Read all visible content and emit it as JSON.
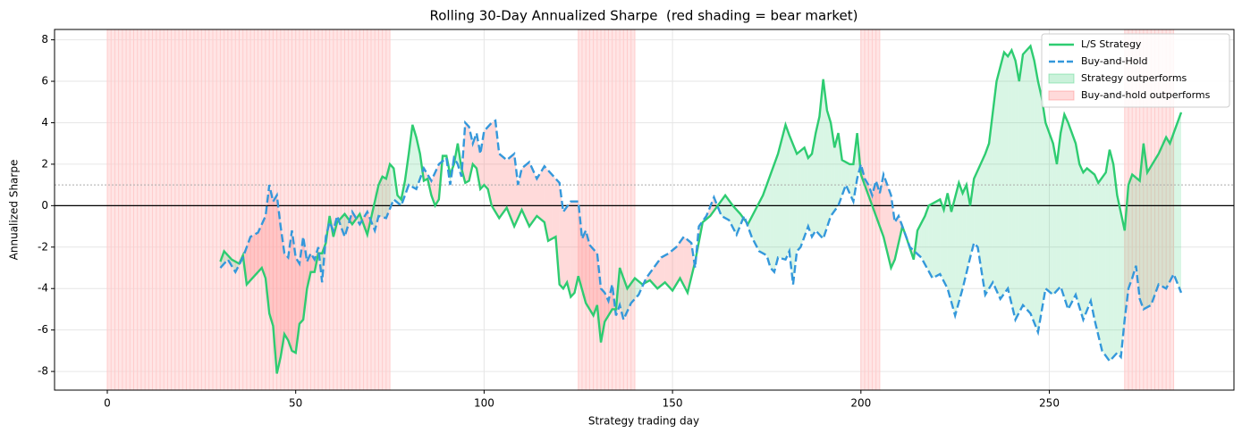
{
  "chart_data": {
    "type": "line",
    "title": "Rolling 30-Day Annualized Sharpe  (red shading = bear market)",
    "x_label": "Strategy trading day",
    "y_label": "Annualized Sharpe",
    "xlim": [
      -14,
      299
    ],
    "ylim": [
      -8.9,
      8.5
    ],
    "xticks": [
      0,
      50,
      100,
      150,
      200,
      250
    ],
    "yticks": [
      -8,
      -6,
      -4,
      -2,
      0,
      2,
      4,
      6,
      8
    ],
    "grid": true,
    "legend": "upper right",
    "hlines": [
      {
        "y": 0,
        "color": "#000000",
        "style": "solid"
      },
      {
        "y": 1,
        "color": "#aaaaaa",
        "style": "dotted"
      }
    ],
    "bear_regions": [
      [
        0,
        75
      ],
      [
        125,
        140
      ],
      [
        200,
        205
      ],
      [
        270,
        283
      ]
    ],
    "bear_color": "#ffcccc",
    "fill_legend": [
      {
        "name": "Strategy outperforms",
        "color": "#2ecc71"
      },
      {
        "name": "Buy-and-hold outperforms",
        "color": "#ff6b6b"
      }
    ],
    "series": [
      {
        "name": "L/S Strategy",
        "color": "#2ecc71",
        "linestyle": "solid",
        "x": [
          30,
          31,
          33,
          35,
          36,
          37,
          39,
          41,
          42,
          43,
          44,
          45,
          46,
          47,
          48,
          49,
          50,
          51,
          52,
          53,
          54,
          55,
          56,
          57,
          58,
          59,
          60,
          61,
          63,
          65,
          67,
          69,
          70,
          72,
          73,
          74,
          75,
          76,
          77,
          78,
          79,
          80,
          81,
          82,
          83,
          84,
          85,
          86,
          87,
          88,
          89,
          90,
          91,
          92,
          93,
          94,
          95,
          96,
          97,
          98,
          99,
          100,
          101,
          102,
          104,
          106,
          108,
          110,
          112,
          114,
          116,
          117,
          119,
          120,
          121,
          122,
          123,
          124,
          125,
          127,
          129,
          130,
          131,
          132,
          134,
          135,
          136,
          138,
          140,
          142,
          144,
          146,
          148,
          150,
          152,
          154,
          156,
          158,
          160,
          164,
          166,
          168,
          170,
          172,
          174,
          176,
          178,
          180,
          181,
          183,
          185,
          186,
          187,
          188,
          189,
          190,
          191,
          192,
          193,
          194,
          195,
          197,
          198,
          199,
          200,
          202,
          204,
          206,
          208,
          209,
          211,
          212,
          214,
          215,
          217,
          218,
          221,
          222,
          223,
          224,
          226,
          227,
          228,
          229,
          230,
          233,
          234,
          235,
          236,
          238,
          239,
          240,
          241,
          242,
          243,
          245,
          246,
          247,
          248,
          249,
          251,
          252,
          253,
          254,
          255,
          257,
          258,
          259,
          260,
          262,
          263,
          265,
          266,
          267,
          268,
          270,
          271,
          272,
          274,
          275,
          276,
          278,
          279,
          281,
          282,
          283,
          285
        ],
        "values": [
          -2.7,
          -2.2,
          -2.6,
          -2.8,
          -2.4,
          -3.8,
          -3.4,
          -3.0,
          -3.5,
          -5.2,
          -5.8,
          -8.1,
          -7.3,
          -6.2,
          -6.5,
          -7.0,
          -7.1,
          -5.7,
          -5.5,
          -4.0,
          -3.2,
          -3.2,
          -2.3,
          -2.3,
          -1.8,
          -0.5,
          -1.5,
          -0.8,
          -0.4,
          -0.9,
          -0.4,
          -1.4,
          -0.6,
          1.0,
          1.4,
          1.3,
          2.0,
          1.8,
          0.5,
          0.3,
          1.2,
          2.5,
          3.9,
          3.3,
          2.5,
          1.2,
          1.3,
          0.5,
          0.0,
          0.3,
          2.4,
          2.4,
          1.5,
          2.0,
          3.0,
          1.8,
          1.1,
          1.2,
          2.0,
          1.8,
          0.8,
          1.0,
          0.8,
          0.0,
          -0.6,
          -0.1,
          -1.0,
          -0.2,
          -1.0,
          -0.5,
          -0.8,
          -1.7,
          -1.5,
          -3.8,
          -4.0,
          -3.7,
          -4.4,
          -4.2,
          -3.4,
          -4.7,
          -5.3,
          -4.8,
          -6.6,
          -5.6,
          -5.0,
          -5.0,
          -3.0,
          -4.0,
          -3.5,
          -3.8,
          -3.6,
          -4.0,
          -3.7,
          -4.1,
          -3.5,
          -4.2,
          -2.7,
          -0.8,
          -0.5,
          0.5,
          0.0,
          -0.4,
          -0.9,
          -0.2,
          0.5,
          1.5,
          2.5,
          3.9,
          3.4,
          2.5,
          2.8,
          2.3,
          2.5,
          3.5,
          4.3,
          6.1,
          4.6,
          4.0,
          2.8,
          3.5,
          2.2,
          2.0,
          2.0,
          3.5,
          1.5,
          0.5,
          -0.5,
          -1.5,
          -3.0,
          -2.6,
          -1.0,
          -1.5,
          -2.6,
          -1.2,
          -0.5,
          0.0,
          0.3,
          -0.2,
          0.6,
          -0.3,
          1.1,
          0.6,
          1.0,
          0.0,
          1.3,
          2.5,
          3.0,
          4.5,
          6.0,
          7.4,
          7.2,
          7.5,
          7.0,
          6.0,
          7.3,
          7.7,
          7.0,
          6.0,
          5.2,
          4.0,
          3.0,
          2.0,
          3.5,
          4.4,
          4.0,
          3.0,
          2.0,
          1.6,
          1.8,
          1.5,
          1.1,
          1.6,
          2.7,
          2.0,
          0.5,
          -1.2,
          1.0,
          1.5,
          1.2,
          3.0,
          1.6,
          2.2,
          2.5,
          3.3,
          3.0,
          3.5,
          4.5
        ]
      },
      {
        "name": "Buy-and-Hold",
        "color": "#3498db",
        "linestyle": "dashed",
        "x": [
          30,
          32,
          34,
          36,
          38,
          40,
          42,
          43,
          44,
          45,
          46,
          47,
          48,
          49,
          50,
          51,
          52,
          53,
          54,
          55,
          56,
          57,
          58,
          59,
          60,
          61,
          63,
          65,
          67,
          69,
          71,
          72,
          74,
          76,
          78,
          80,
          82,
          84,
          86,
          88,
          90,
          91,
          92,
          93,
          94,
          95,
          96,
          97,
          98,
          99,
          100,
          102,
          103,
          104,
          106,
          108,
          109,
          110,
          112,
          114,
          116,
          118,
          120,
          121,
          123,
          125,
          126,
          127,
          128,
          130,
          131,
          132,
          133,
          134,
          135,
          136,
          137,
          139,
          141,
          143,
          145,
          147,
          149,
          151,
          153,
          155,
          156,
          157,
          159,
          161,
          163,
          165,
          167,
          169,
          171,
          173,
          175,
          176,
          177,
          178,
          180,
          181,
          182,
          183,
          184,
          186,
          187,
          188,
          190,
          192,
          194,
          196,
          198,
          199,
          200,
          201,
          202,
          203,
          204,
          205,
          206,
          207,
          208,
          209,
          210,
          213,
          216,
          219,
          221,
          223,
          225,
          227,
          229,
          230,
          231,
          233,
          235,
          237,
          239,
          241,
          243,
          245,
          247,
          249,
          251,
          253,
          255,
          257,
          259,
          261,
          262,
          264,
          266,
          268,
          269,
          270,
          271,
          272,
          273,
          274,
          275,
          277,
          279,
          281,
          283,
          285
        ],
        "values": [
          -3.0,
          -2.6,
          -3.2,
          -2.5,
          -1.5,
          -1.3,
          -0.5,
          1.0,
          0.2,
          0.5,
          -1.0,
          -2.3,
          -2.5,
          -1.2,
          -2.5,
          -2.8,
          -1.5,
          -2.7,
          -2.3,
          -2.6,
          -2.0,
          -3.7,
          -1.5,
          -0.8,
          -1.2,
          -0.5,
          -1.5,
          -0.3,
          -0.9,
          -0.3,
          -1.2,
          -0.5,
          -0.6,
          0.3,
          0.0,
          1.0,
          0.8,
          1.8,
          1.2,
          2.0,
          2.3,
          1.0,
          2.3,
          2.0,
          1.4,
          4.0,
          3.8,
          3.0,
          3.5,
          2.5,
          3.6,
          4.0,
          4.1,
          2.5,
          2.2,
          2.5,
          1.0,
          1.8,
          2.1,
          1.3,
          1.9,
          1.5,
          1.1,
          -0.3,
          0.2,
          0.2,
          -1.6,
          -1.2,
          -1.9,
          -2.3,
          -4.0,
          -4.2,
          -4.6,
          -3.8,
          -5.3,
          -4.8,
          -5.5,
          -4.7,
          -4.3,
          -3.5,
          -3.0,
          -2.5,
          -2.3,
          -2.0,
          -1.5,
          -1.8,
          -3.0,
          -1.0,
          -0.5,
          0.4,
          -0.5,
          -0.7,
          -1.4,
          -0.5,
          -1.5,
          -2.2,
          -2.4,
          -3.0,
          -3.2,
          -2.5,
          -2.6,
          -2.2,
          -3.8,
          -2.2,
          -2.0,
          -1.0,
          -1.5,
          -1.2,
          -1.6,
          -0.5,
          0.0,
          1.0,
          0.2,
          1.3,
          2.0,
          1.3,
          1.0,
          0.5,
          1.2,
          0.6,
          1.5,
          1.0,
          0.5,
          -0.8,
          -0.5,
          -2.0,
          -2.5,
          -3.5,
          -3.3,
          -4.0,
          -5.3,
          -4.0,
          -2.5,
          -1.8,
          -2.0,
          -4.3,
          -3.7,
          -4.5,
          -4.0,
          -5.5,
          -4.8,
          -5.2,
          -6.1,
          -4.0,
          -4.3,
          -3.9,
          -5.0,
          -4.3,
          -5.5,
          -4.6,
          -5.5,
          -7.0,
          -7.5,
          -7.1,
          -7.3,
          -5.5,
          -4.0,
          -3.5,
          -2.9,
          -4.5,
          -5.0,
          -4.8,
          -3.8,
          -4.0,
          -3.3,
          -4.2
        ]
      }
    ]
  }
}
